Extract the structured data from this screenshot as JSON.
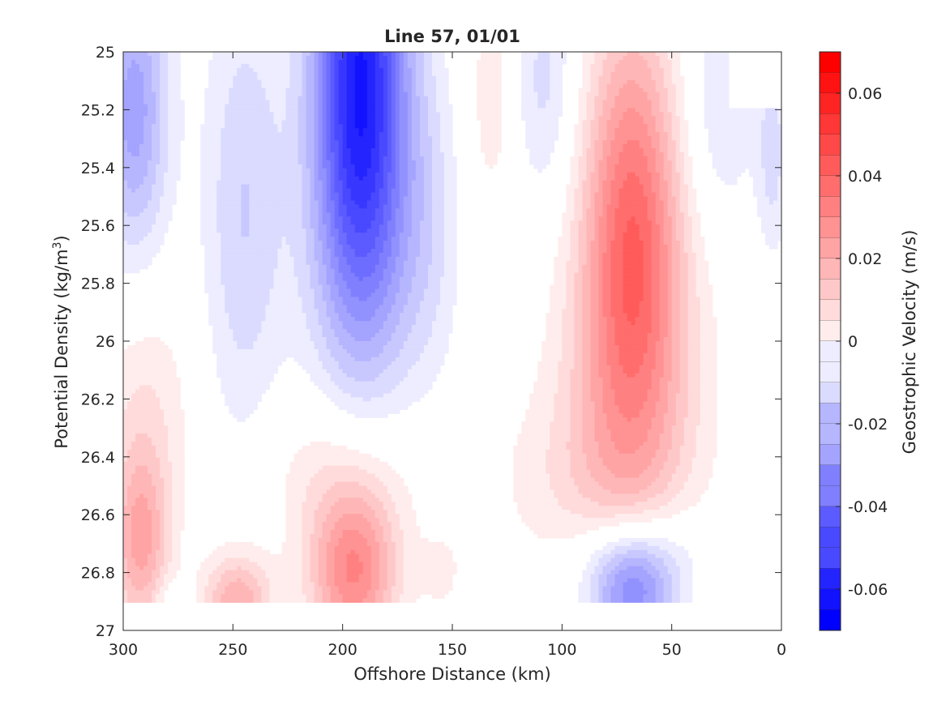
{
  "chart_data": {
    "type": "heatmap",
    "subtype": "filled-contour",
    "title": "Line 57, 01/01",
    "xlabel": "Offshore Distance (km)",
    "ylabel_main": "Potential Density (kg/m",
    "ylabel_sup": "3",
    "ylabel_close": ")",
    "colorbar_label": "Geostrophic Velocity (m/s)",
    "xlim": [
      300,
      0
    ],
    "ylim": [
      25,
      27
    ],
    "x_reversed": true,
    "y_reversed": true,
    "x_ticks": [
      300,
      250,
      200,
      150,
      100,
      50,
      0
    ],
    "x_tick_labels": [
      "300",
      "250",
      "200",
      "150",
      "100",
      "50",
      "0"
    ],
    "y_ticks": [
      25,
      25.2,
      25.4,
      25.6,
      25.8,
      26,
      26.2,
      26.4,
      26.6,
      26.8,
      27
    ],
    "y_tick_labels": [
      "25",
      "25.2",
      "25.4",
      "25.6",
      "25.8",
      "26",
      "26.2",
      "26.4",
      "26.6",
      "26.8",
      "27"
    ],
    "colorbar_limits": [
      -0.07,
      0.07
    ],
    "colorbar_step": 0.005,
    "colorbar_ticks": [
      0.06,
      0.04,
      0.02,
      0,
      -0.02,
      -0.04,
      -0.06
    ],
    "colorbar_tick_labels": [
      "0.06",
      "0.04",
      "0.02",
      "0",
      "-0.02",
      "-0.04",
      "-0.06"
    ],
    "colormap": {
      "negative": "#0000ff",
      "zero": "#ffffff",
      "positive": "#ff0000"
    },
    "data_bottom_density": 26.9,
    "grid": false,
    "features": [
      {
        "x": 192,
        "y": 25.0,
        "v": -0.058,
        "sx": 15,
        "sy": 0.55
      },
      {
        "x": 190,
        "y": 25.65,
        "v": -0.02,
        "sx": 18,
        "sy": 0.45
      },
      {
        "x": 295,
        "y": 25.2,
        "v": -0.028,
        "sx": 11,
        "sy": 0.35
      },
      {
        "x": 245,
        "y": 25.55,
        "v": -0.015,
        "sx": 13,
        "sy": 0.55
      },
      {
        "x": 160,
        "y": 25.6,
        "v": -0.008,
        "sx": 10,
        "sy": 0.4
      },
      {
        "x": 108,
        "y": 25.1,
        "v": -0.012,
        "sx": 10,
        "sy": 0.3
      },
      {
        "x": 28,
        "y": 25.2,
        "v": -0.01,
        "sx": 12,
        "sy": 0.3
      },
      {
        "x": 4,
        "y": 25.35,
        "v": -0.012,
        "sx": 5,
        "sy": 0.25
      },
      {
        "x": 68,
        "y": 25.55,
        "v": 0.035,
        "sx": 15,
        "sy": 0.5
      },
      {
        "x": 68,
        "y": 26.1,
        "v": 0.02,
        "sx": 22,
        "sy": 0.45
      },
      {
        "x": 132,
        "y": 25.15,
        "v": 0.008,
        "sx": 8,
        "sy": 0.3
      },
      {
        "x": 90,
        "y": 26.5,
        "v": 0.008,
        "sx": 30,
        "sy": 0.25
      },
      {
        "x": 195,
        "y": 26.8,
        "v": 0.035,
        "sx": 14,
        "sy": 0.2
      },
      {
        "x": 200,
        "y": 26.45,
        "v": 0.01,
        "sx": 25,
        "sy": 0.2
      },
      {
        "x": 292,
        "y": 26.7,
        "v": 0.025,
        "sx": 9,
        "sy": 0.22
      },
      {
        "x": 290,
        "y": 26.25,
        "v": 0.01,
        "sx": 15,
        "sy": 0.3
      },
      {
        "x": 248,
        "y": 26.9,
        "v": 0.025,
        "sx": 11,
        "sy": 0.12
      },
      {
        "x": 68,
        "y": 26.88,
        "v": -0.035,
        "sx": 14,
        "sy": 0.13
      },
      {
        "x": 65,
        "y": 26.72,
        "v": -0.012,
        "sx": 22,
        "sy": 0.12
      },
      {
        "x": 278,
        "y": 26.9,
        "v": -0.008,
        "sx": 5,
        "sy": 0.05
      },
      {
        "x": 155,
        "y": 26.8,
        "v": 0.006,
        "sx": 7,
        "sy": 0.1
      }
    ],
    "nodata_region": "upper-right corner, x 0–25 km, density 25.0–25.2"
  }
}
